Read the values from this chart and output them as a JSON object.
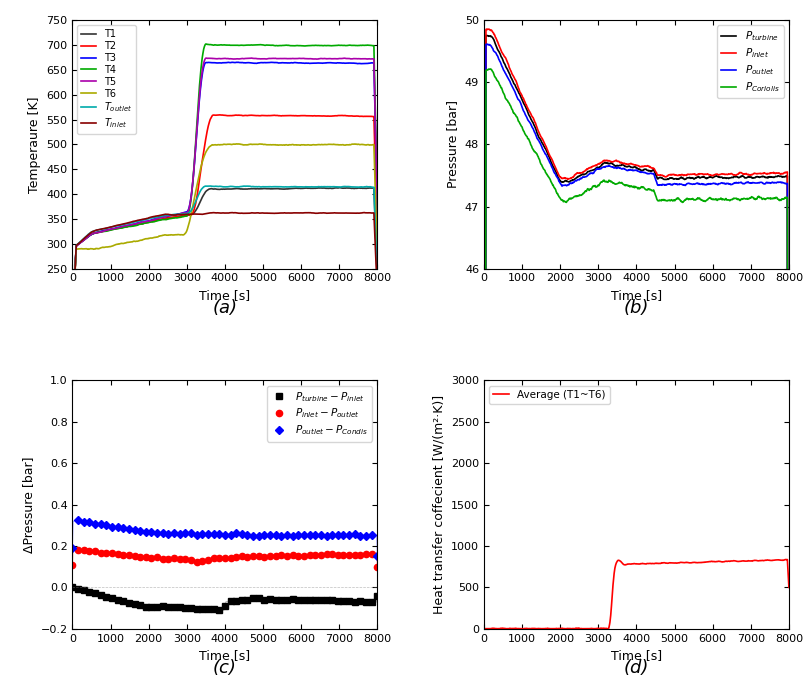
{
  "title_a": "(a)",
  "title_b": "(b)",
  "title_c": "(c)",
  "title_d": "(d)",
  "xlabel": "Time [s]",
  "ylabel_a": "Temperaure [K]",
  "ylabel_b": "Pressure [bar]",
  "ylabel_c": "ΔPressure [bar]",
  "ylabel_d": "Heat transfer coffecient [W/(m²·K)]",
  "xlim": [
    0,
    8000
  ],
  "ylim_a": [
    250,
    750
  ],
  "ylim_b": [
    46,
    50
  ],
  "ylim_c": [
    -0.2,
    1.0
  ],
  "ylim_d": [
    0,
    3000
  ],
  "temp_colors": {
    "T1": "#333333",
    "T2": "#ff0000",
    "T3": "#0000ff",
    "T4": "#00aa00",
    "T5": "#aa00aa",
    "T6": "#aaaa00",
    "T_outlet": "#00aaaa",
    "T_inlet": "#880000"
  },
  "pressure_colors": {
    "P_turbine": "#000000",
    "P_inlet": "#ff0000",
    "P_outlet": "#0000ff",
    "P_Coriolis": "#00aa00"
  },
  "dp_colors": {
    "dp1": "#000000",
    "dp2": "#ff0000",
    "dp3": "#0000ff"
  },
  "htc_color": "#ff0000"
}
